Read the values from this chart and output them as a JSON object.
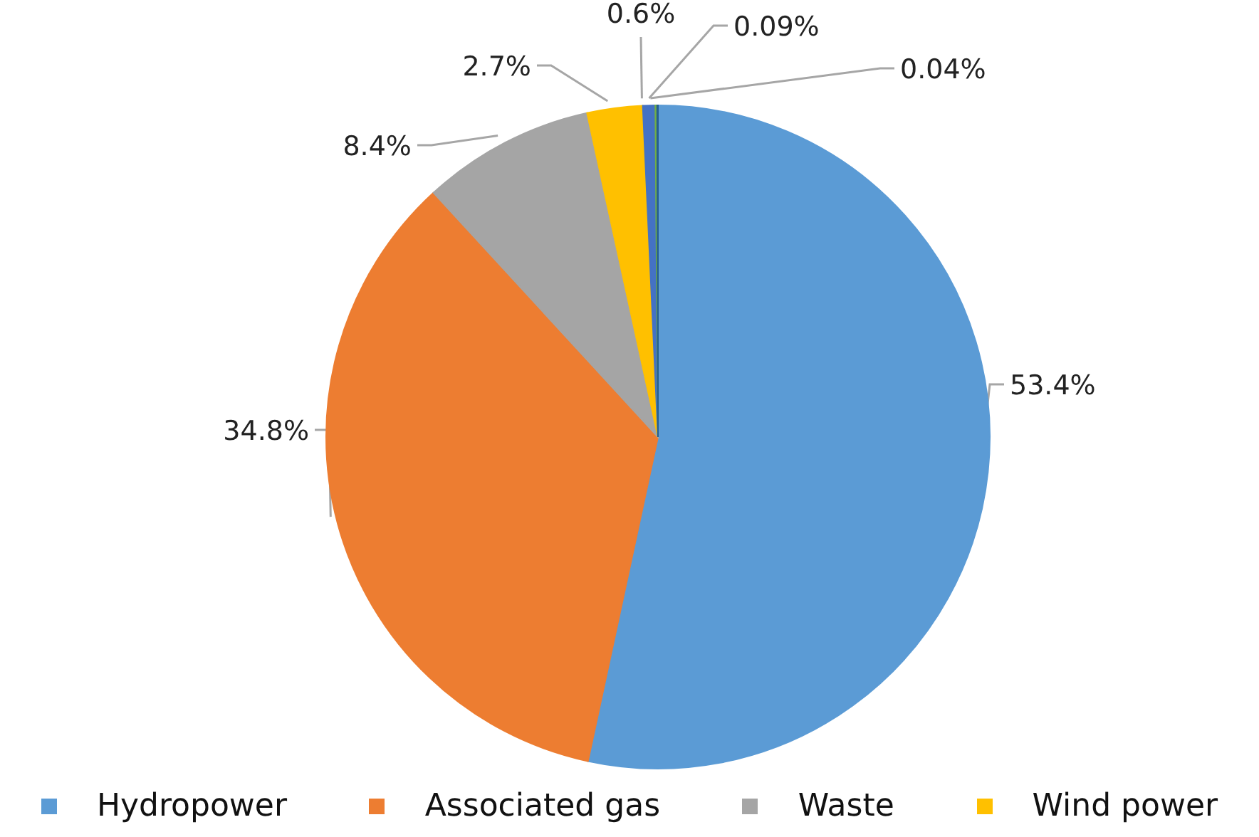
{
  "chart_data": {
    "type": "pie",
    "categories": [
      "Hydropower",
      "Associated gas",
      "Waste",
      "Wind power",
      null,
      null,
      null
    ],
    "values": [
      53.4,
      34.8,
      8.4,
      2.7,
      0.6,
      0.09,
      0.04
    ],
    "colors": [
      "#5b9bd5",
      "#ed7d31",
      "#a5a5a5",
      "#ffc000",
      "#4472c4",
      "#70ad47",
      "#255e91"
    ],
    "value_labels": [
      "53.4%",
      "34.8%",
      "8.4%",
      "2.7%",
      "0.6%",
      "0.09%",
      "0.04%"
    ],
    "legend": "bottom"
  }
}
